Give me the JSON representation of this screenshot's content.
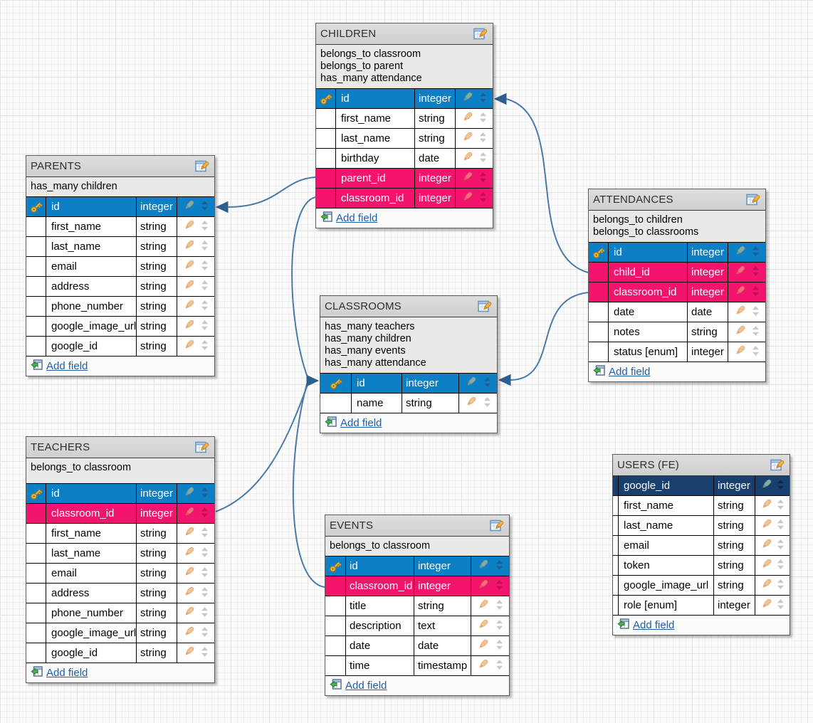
{
  "diagram": {
    "tables": [
      {
        "key": "children",
        "title": "CHILDREN",
        "associations": [
          "belongs_to classroom",
          "belongs_to parent",
          "has_many attendance"
        ],
        "fields": [
          {
            "name": "id",
            "type": "integer",
            "kind": "pk",
            "key_icon": true
          },
          {
            "name": "first_name",
            "type": "string",
            "kind": "normal",
            "key_icon": false
          },
          {
            "name": "last_name",
            "type": "string",
            "kind": "normal",
            "key_icon": false
          },
          {
            "name": "birthday",
            "type": "date",
            "kind": "normal",
            "key_icon": false
          },
          {
            "name": "parent_id",
            "type": "integer",
            "kind": "fk",
            "key_icon": false
          },
          {
            "name": "classroom_id",
            "type": "integer",
            "kind": "fk",
            "key_icon": false
          }
        ],
        "add_label": "Add field"
      },
      {
        "key": "parents",
        "title": "PARENTS",
        "associations": [
          "has_many children"
        ],
        "fields": [
          {
            "name": "id",
            "type": "integer",
            "kind": "pk",
            "key_icon": true
          },
          {
            "name": "first_name",
            "type": "string",
            "kind": "normal",
            "key_icon": false
          },
          {
            "name": "last_name",
            "type": "string",
            "kind": "normal",
            "key_icon": false
          },
          {
            "name": "email",
            "type": "string",
            "kind": "normal",
            "key_icon": false
          },
          {
            "name": "address",
            "type": "string",
            "kind": "normal",
            "key_icon": false
          },
          {
            "name": "phone_number",
            "type": "string",
            "kind": "normal",
            "key_icon": false
          },
          {
            "name": "google_image_url",
            "type": "string",
            "kind": "normal",
            "key_icon": false
          },
          {
            "name": "google_id",
            "type": "string",
            "kind": "normal",
            "key_icon": false
          }
        ],
        "add_label": "Add field"
      },
      {
        "key": "attendances",
        "title": "ATTENDANCES",
        "associations": [
          "belongs_to children",
          "belongs_to classrooms"
        ],
        "fields": [
          {
            "name": "id",
            "type": "integer",
            "kind": "pk",
            "key_icon": true
          },
          {
            "name": "child_id",
            "type": "integer",
            "kind": "fk",
            "key_icon": false
          },
          {
            "name": "classroom_id",
            "type": "integer",
            "kind": "fk",
            "key_icon": false
          },
          {
            "name": "date",
            "type": "date",
            "kind": "normal",
            "key_icon": false
          },
          {
            "name": "notes",
            "type": "string",
            "kind": "normal",
            "key_icon": false
          },
          {
            "name": "status [enum]",
            "type": "integer",
            "kind": "normal",
            "key_icon": false
          }
        ],
        "add_label": "Add field"
      },
      {
        "key": "classrooms",
        "title": "CLASSROOMS",
        "associations": [
          "has_many teachers",
          "has_many children",
          "has_many events",
          "has_many attendance"
        ],
        "fields": [
          {
            "name": "id",
            "type": "integer",
            "kind": "pk",
            "key_icon": true
          },
          {
            "name": "name",
            "type": "string",
            "kind": "normal",
            "key_icon": false
          }
        ],
        "add_label": "Add field"
      },
      {
        "key": "teachers",
        "title": "TEACHERS",
        "associations": [
          "belongs_to classroom"
        ],
        "fields": [
          {
            "name": "id",
            "type": "integer",
            "kind": "pk",
            "key_icon": true
          },
          {
            "name": "classroom_id",
            "type": "integer",
            "kind": "fk",
            "key_icon": false
          },
          {
            "name": "first_name",
            "type": "string",
            "kind": "normal",
            "key_icon": false
          },
          {
            "name": "last_name",
            "type": "string",
            "kind": "normal",
            "key_icon": false
          },
          {
            "name": "email",
            "type": "string",
            "kind": "normal",
            "key_icon": false
          },
          {
            "name": "address",
            "type": "string",
            "kind": "normal",
            "key_icon": false
          },
          {
            "name": "phone_number",
            "type": "string",
            "kind": "normal",
            "key_icon": false
          },
          {
            "name": "google_image_url",
            "type": "string",
            "kind": "normal",
            "key_icon": false
          },
          {
            "name": "google_id",
            "type": "string",
            "kind": "normal",
            "key_icon": false
          }
        ],
        "add_label": "Add field"
      },
      {
        "key": "events",
        "title": "EVENTS",
        "associations": [
          "belongs_to classroom"
        ],
        "fields": [
          {
            "name": "id",
            "type": "integer",
            "kind": "pk",
            "key_icon": true
          },
          {
            "name": "classroom_id",
            "type": "integer",
            "kind": "fk",
            "key_icon": false
          },
          {
            "name": "title",
            "type": "string",
            "kind": "normal",
            "key_icon": false
          },
          {
            "name": "description",
            "type": "text",
            "kind": "normal",
            "key_icon": false
          },
          {
            "name": "date",
            "type": "date",
            "kind": "normal",
            "key_icon": false
          },
          {
            "name": "time",
            "type": "timestamp",
            "kind": "normal",
            "key_icon": false
          }
        ],
        "add_label": "Add field"
      },
      {
        "key": "users",
        "title": "USERS (FE)",
        "associations": [],
        "fields": [
          {
            "name": "google_id",
            "type": "integer",
            "kind": "pkdark",
            "key_icon": false
          },
          {
            "name": "first_name",
            "type": "string",
            "kind": "normal",
            "key_icon": false
          },
          {
            "name": "last_name",
            "type": "string",
            "kind": "normal",
            "key_icon": false
          },
          {
            "name": "email",
            "type": "string",
            "kind": "normal",
            "key_icon": false
          },
          {
            "name": "token",
            "type": "string",
            "kind": "normal",
            "key_icon": false
          },
          {
            "name": "google_image_url",
            "type": "string",
            "kind": "normal",
            "key_icon": false
          },
          {
            "name": "role [enum]",
            "type": "integer",
            "kind": "normal",
            "key_icon": false
          }
        ],
        "add_label": "Add field"
      }
    ],
    "relations": [
      {
        "from": "children.parent_id",
        "to": "parents.id"
      },
      {
        "from": "children.classroom_id",
        "to": "classrooms.id"
      },
      {
        "from": "teachers.classroom_id",
        "to": "classrooms.id"
      },
      {
        "from": "events.classroom_id",
        "to": "classrooms.id"
      },
      {
        "from": "attendances.child_id",
        "to": "children.id"
      },
      {
        "from": "attendances.classroom_id",
        "to": "classrooms.id"
      }
    ],
    "colors": {
      "pk_row": "#0d80c5",
      "pk_row_dark": "#17406e",
      "fk_row": "#f3146d",
      "arrow": "#4b7aa9",
      "add_link": "#1b5fae"
    }
  }
}
